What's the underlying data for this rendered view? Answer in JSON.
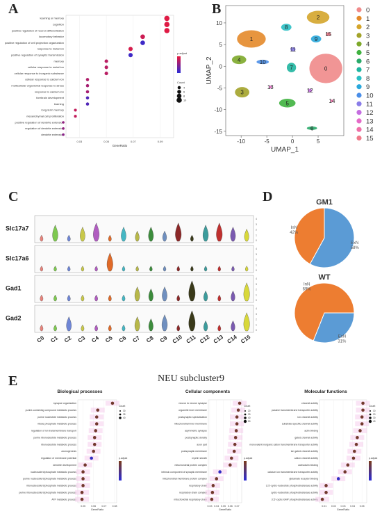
{
  "panels": {
    "A": "A",
    "B": "B",
    "C": "C",
    "D": "D",
    "E": "E"
  },
  "colors": {
    "go_high": "#e8193c",
    "go_low": "#2b2bd6",
    "excitatory": "#5b9bd5",
    "inhibitory": "#ed7d31"
  },
  "panel_a": {
    "terms": [
      "learning or memory",
      "cognition",
      "positive regulation of neuron differentiation",
      "locomotory behavior",
      "positive regulation of cell projection organization",
      "response to metal ion",
      "positive regulation of synaptic transmission",
      "memory",
      "cellular response to metal ion",
      "cellular response to inorganic substance",
      "cellular response to calcium ion",
      "multicellular organismal response to stress",
      "response to calcium ion",
      "forebrain development",
      "learning",
      "long-term memory",
      "mesenchymal cell proliferation",
      "positive regulation of dendrite extension",
      "regulation of dendrite extension",
      "dendrite extension"
    ],
    "gene_ratio": [
      0.095,
      0.095,
      0.095,
      0.077,
      0.077,
      0.068,
      0.068,
      0.05,
      0.05,
      0.05,
      0.036,
      0.036,
      0.036,
      0.036,
      0.036,
      0.027,
      0.027,
      0.018,
      0.018,
      0.018
    ],
    "padj_level": [
      0.95,
      0.95,
      0.95,
      0.85,
      0.1,
      0.9,
      0.1,
      0.75,
      0.75,
      0.75,
      0.7,
      0.65,
      0.65,
      0.2,
      0.2,
      0.8,
      0.8,
      0.55,
      0.55,
      0.5
    ],
    "count": [
      10,
      10,
      10,
      8,
      8,
      7,
      7,
      5,
      5,
      5,
      4,
      4,
      4,
      4,
      4,
      3,
      3,
      2,
      2,
      2
    ],
    "x_ticks": [
      "0.03",
      "0.05",
      "0.07",
      "0.09"
    ],
    "xlabel": "GeneRatio",
    "color_legend_title": "p.adjust",
    "size_legend_title": "Count",
    "size_legend": [
      "4",
      "6",
      "8",
      "10"
    ]
  },
  "panel_b": {
    "xlabel": "UMAP_1",
    "ylabel": "UMAP_2",
    "x_ticks": [
      "-10",
      "-5",
      "0",
      "5"
    ],
    "y_ticks": [
      "10",
      "5",
      "0",
      "-5",
      "-10",
      "-15"
    ],
    "clusters": [
      "0",
      "1",
      "2",
      "3",
      "4",
      "5",
      "6",
      "7",
      "8",
      "9",
      "10",
      "11",
      "12",
      "13",
      "14",
      "15"
    ],
    "cluster_colors": [
      "#f08a8a",
      "#e48a2a",
      "#d4a52b",
      "#a3a32a",
      "#7da82a",
      "#3fb23f",
      "#2aaa6a",
      "#1fb5a0",
      "#2abfc4",
      "#2aa8dc",
      "#4a8ee8",
      "#8a7de8",
      "#c56ee0",
      "#e56ac8",
      "#ef6fa8",
      "#f07a8a"
    ]
  },
  "panel_c": {
    "genes": [
      "Slc17a7",
      "Slc17a6",
      "Gad1",
      "Gad2"
    ],
    "clusters": [
      "C0",
      "C1",
      "C2",
      "C3",
      "C4",
      "C5",
      "C6",
      "C7",
      "C8",
      "C9",
      "C10",
      "C11",
      "C12",
      "C13",
      "C14",
      "C15"
    ],
    "cluster_colors": [
      "#e8837b",
      "#7ec850",
      "#6f86d6",
      "#c8c84a",
      "#b05cc0",
      "#e06a28",
      "#45b7c4",
      "#b8b84a",
      "#3c8c3c",
      "#6f8fbf",
      "#8c2828",
      "#3a3a1a",
      "#3c9c9c",
      "#c0302f",
      "#7a5ab0",
      "#d8d83a"
    ],
    "expression": [
      [
        0.1,
        0.6,
        0.1,
        0.5,
        0.7,
        0.1,
        0.5,
        0.3,
        0.5,
        0.3,
        0.7,
        0.1,
        0.6,
        0.7,
        0.5,
        0.4
      ],
      [
        0.05,
        0.05,
        0.05,
        0.05,
        0.05,
        0.7,
        0.05,
        0.05,
        0.05,
        0.05,
        0.05,
        0.05,
        0.05,
        0.05,
        0.05,
        0.05
      ],
      [
        0.1,
        0.1,
        0.1,
        0.1,
        0.1,
        0.1,
        0.1,
        0.5,
        0.4,
        0.5,
        0.1,
        0.8,
        0.3,
        0.1,
        0.3,
        0.7
      ],
      [
        0.1,
        0.1,
        0.5,
        0.1,
        0.1,
        0.1,
        0.1,
        0.5,
        0.4,
        0.6,
        0.1,
        0.8,
        0.3,
        0.1,
        0.3,
        0.7
      ]
    ]
  },
  "panel_d": {
    "pies": [
      {
        "title": "GM1",
        "slices": [
          {
            "label": "ExN",
            "value": 58,
            "text": "58%"
          },
          {
            "label": "InN",
            "value": 42,
            "text": "42%"
          }
        ]
      },
      {
        "title": "WT",
        "slices": [
          {
            "label": "ExN",
            "value": 31,
            "text": "31%"
          },
          {
            "label": "InN",
            "value": 69,
            "text": "69%"
          }
        ]
      }
    ]
  },
  "panel_e": {
    "title": "NEU subcluster9",
    "charts": [
      {
        "title": "Biological processes",
        "terms": [
          "synapse organization",
          "purine-containing compound metabolic process",
          "purine nucleotide metabolic process",
          "ribose phosphate metabolic process",
          "regulation of ion transmembrane transport",
          "purine ribonucleotide metabolic process",
          "ribonucleotide metabolic process",
          "axonogenesis",
          "regulation of membrane potential",
          "dendrite development",
          "nucleoside triphosphate metabolic process",
          "purine nucleoside triphosphate metabolic process",
          "ribonucleoside triphosphate metabolic process",
          "purine ribonucleoside triphosphate metabolic process",
          "ATP metabolic process"
        ],
        "gene_ratio": [
          0.078,
          0.064,
          0.063,
          0.063,
          0.062,
          0.061,
          0.061,
          0.06,
          0.058,
          0.052,
          0.05,
          0.05,
          0.05,
          0.049,
          0.049
        ],
        "padj_level": [
          0.9,
          0.9,
          0.9,
          0.9,
          0.9,
          0.9,
          0.9,
          0.9,
          0.1,
          0.9,
          0.9,
          0.9,
          0.9,
          0.9,
          0.9
        ],
        "x_ticks": [
          "0.05",
          "0.06",
          "0.07",
          "0.08"
        ],
        "x_range": [
          0.045,
          0.082
        ],
        "xlabel": "GeneRatio",
        "count_legend": [
          "30",
          "35",
          "40"
        ]
      },
      {
        "title": "Cellular components",
        "terms": [
          "neuron to neuron synapse",
          "organelle inner membrane",
          "postsynaptic specialization",
          "mitochondrial inner membrane",
          "asymmetric synapse",
          "postsynaptic density",
          "axon part",
          "postsynaptic membrane",
          "myelin sheath",
          "mitochondrial protein complex",
          "intrinsic component of synaptic membrane",
          "mitochondrial membrane protein complex",
          "respiratory chain",
          "respiratory chain complex",
          "mitochondrial respiratory chain"
        ],
        "gene_ratio": [
          0.074,
          0.072,
          0.07,
          0.07,
          0.069,
          0.068,
          0.067,
          0.066,
          0.062,
          0.06,
          0.045,
          0.04,
          0.035,
          0.034,
          0.033
        ],
        "padj_level": [
          0.9,
          0.9,
          0.9,
          0.9,
          0.9,
          0.9,
          0.9,
          0.9,
          0.9,
          0.9,
          0.1,
          0.9,
          0.9,
          0.9,
          0.9
        ],
        "x_ticks": [
          "0.03",
          "0.04",
          "0.05",
          "0.06",
          "0.07"
        ],
        "x_range": [
          0.028,
          0.077
        ],
        "xlabel": "GeneRatio",
        "count_legend": [
          "20",
          "30",
          "40",
          "50"
        ]
      },
      {
        "title": "Molecular functions",
        "terms": [
          "channel activity",
          "passive transmembrane transporter activity",
          "ion channel activity",
          "substrate-specific channel activity",
          "actin binding",
          "gated channel activity",
          "monovalent inorganic cation transmembrane transporter activity",
          "ion gated channel activity",
          "cation channel activity",
          "calmodulin binding",
          "calcium ion transmembrane transporter activity",
          "glutamate receptor binding",
          "3',5'-cyclic-nucleotide phosphodiesterase activity",
          "cyclic-nucleotide phosphodiesterase activity",
          "3',5'-cyclic-GMP phosphodiesterase activity"
        ],
        "gene_ratio": [
          0.051,
          0.051,
          0.05,
          0.05,
          0.048,
          0.045,
          0.044,
          0.042,
          0.041,
          0.035,
          0.032,
          0.025,
          0.012,
          0.012,
          0.008
        ],
        "padj_level": [
          0.9,
          0.9,
          0.9,
          0.9,
          0.9,
          0.9,
          0.9,
          0.9,
          0.9,
          0.9,
          0.9,
          0.1,
          0.9,
          0.9,
          0.9
        ],
        "x_ticks": [
          "0.01",
          "0.02",
          "0.03",
          "0.04",
          "0.05"
        ],
        "x_range": [
          0.005,
          0.055
        ],
        "xlabel": "GeneRatio",
        "count_legend": [
          "10",
          "20",
          "30",
          "40"
        ]
      }
    ]
  }
}
